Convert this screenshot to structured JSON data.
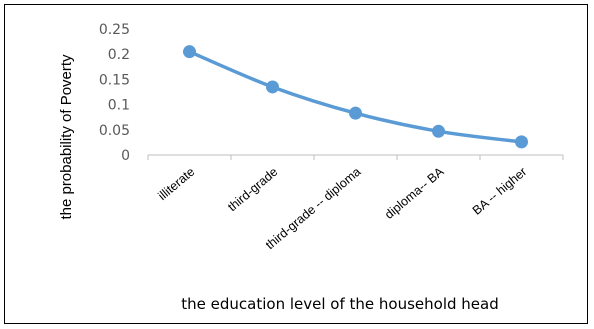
{
  "chart_data": {
    "type": "line",
    "categories": [
      "illiterate",
      "third-grade",
      "third-grade -- diploma",
      "diploma-- BA",
      "BA -- higher"
    ],
    "series": [
      {
        "values": [
          0.205,
          0.135,
          0.083,
          0.047,
          0.026
        ]
      }
    ],
    "xlabel": "the education level of the household head",
    "ylabel": "the probability of Poverty",
    "ylim": [
      0,
      0.25
    ],
    "yticks": [
      "0",
      "0.05",
      "0.1",
      "0.15",
      "0.2",
      "0.25"
    ],
    "grid": false,
    "line_color": "#5b9bd5"
  }
}
